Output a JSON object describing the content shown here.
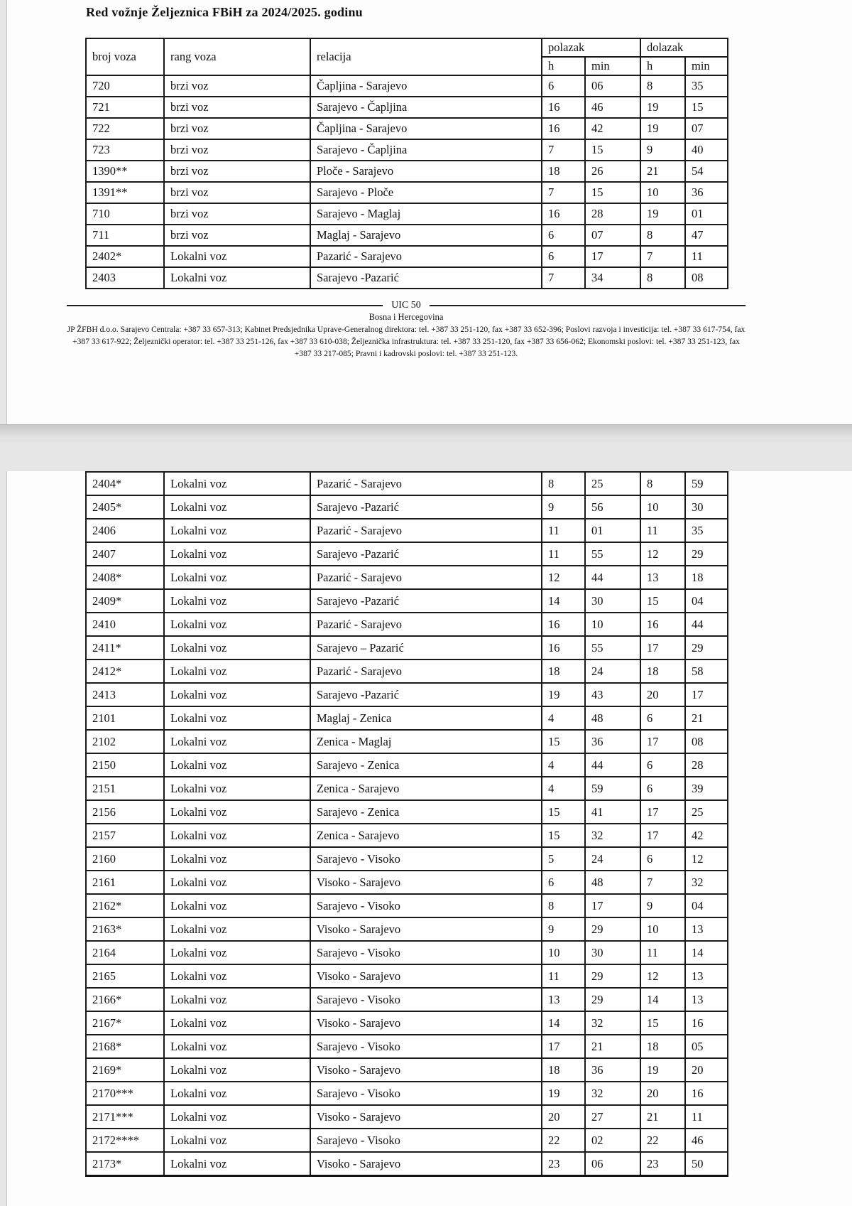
{
  "page1": {
    "title": "Red vožnje Željeznica FBiH za 2024/2025. godinu",
    "table": {
      "headers": {
        "broj": "broj voza",
        "rang": "rang voza",
        "relacija": "relacija",
        "polazak": "polazak",
        "dolazak": "dolazak",
        "h1": "h",
        "min1": "min",
        "h2": "h",
        "min2": "min"
      },
      "rows": [
        {
          "broj": "720",
          "rang": "brzi voz",
          "rel": "Čapljina - Sarajevo",
          "ph": "6",
          "pm": "06",
          "dh": "8",
          "dm": "35"
        },
        {
          "broj": "721",
          "rang": "brzi voz",
          "rel": "Sarajevo - Čapljina",
          "ph": "16",
          "pm": "46",
          "dh": "19",
          "dm": "15"
        },
        {
          "broj": "722",
          "rang": "brzi voz",
          "rel": "Čapljina - Sarajevo",
          "ph": "16",
          "pm": "42",
          "dh": "19",
          "dm": "07"
        },
        {
          "broj": "723",
          "rang": "brzi voz",
          "rel": "Sarajevo - Čapljina",
          "ph": "7",
          "pm": "15",
          "dh": "9",
          "dm": "40"
        },
        {
          "broj": "1390**",
          "rang": "brzi voz",
          "rel": "Ploče - Sarajevo",
          "ph": "18",
          "pm": "26",
          "dh": "21",
          "dm": "54"
        },
        {
          "broj": "1391**",
          "rang": "brzi voz",
          "rel": "Sarajevo - Ploče",
          "ph": "7",
          "pm": "15",
          "dh": "10",
          "dm": "36"
        },
        {
          "broj": "710",
          "rang": "brzi voz",
          "rel": "Sarajevo - Maglaj",
          "ph": "16",
          "pm": "28",
          "dh": "19",
          "dm": "01"
        },
        {
          "broj": "711",
          "rang": "brzi voz",
          "rel": "Maglaj - Sarajevo",
          "ph": "6",
          "pm": "07",
          "dh": "8",
          "dm": "47"
        },
        {
          "broj": "2402*",
          "rang": "Lokalni voz",
          "rel": "Pazarić - Sarajevo",
          "ph": "6",
          "pm": "17",
          "dh": "7",
          "dm": "11"
        },
        {
          "broj": "2403",
          "rang": "Lokalni voz",
          "rel": "Sarajevo -Pazarić",
          "ph": "7",
          "pm": "34",
          "dh": "8",
          "dm": "08"
        }
      ]
    },
    "footer": {
      "uic": "UIC 50",
      "country": "Bosna i Hercegovina",
      "contact": "JP ŽFBH d.o.o. Sarajevo Centrala: +387 33 657-313;  Kabinet Predsjednika Uprave-Generalnog direktora: tel. +387 33 251-120, fax +387 33 652-396; Poslovi razvoja i investicija: tel. +387 33 617-754, fax +387 33 617-922; Željeznički operator: tel. +387 33 251-126, fax +387 33 610-038; Željeznička infrastruktura: tel. +387 33 251-120, fax +387 33 656-062; Ekonomski poslovi: tel. +387 33 251-123, fax +387 33 217-085; Pravni i kadrovski poslovi: tel. +387 33 251-123."
    }
  },
  "page2": {
    "table": {
      "rows": [
        {
          "broj": "2404*",
          "rang": "Lokalni voz",
          "rel": "Pazarić - Sarajevo",
          "ph": "8",
          "pm": "25",
          "dh": "8",
          "dm": "59"
        },
        {
          "broj": "2405*",
          "rang": "Lokalni voz",
          "rel": "Sarajevo -Pazarić",
          "ph": "9",
          "pm": "56",
          "dh": "10",
          "dm": "30"
        },
        {
          "broj": "2406",
          "rang": "Lokalni voz",
          "rel": "Pazarić - Sarajevo",
          "ph": "11",
          "pm": "01",
          "dh": "11",
          "dm": "35"
        },
        {
          "broj": "2407",
          "rang": "Lokalni voz",
          "rel": "Sarajevo -Pazarić",
          "ph": "11",
          "pm": "55",
          "dh": "12",
          "dm": "29"
        },
        {
          "broj": "2408*",
          "rang": "Lokalni voz",
          "rel": "Pazarić - Sarajevo",
          "ph": "12",
          "pm": "44",
          "dh": "13",
          "dm": "18"
        },
        {
          "broj": "2409*",
          "rang": "Lokalni voz",
          "rel": "Sarajevo -Pazarić",
          "ph": "14",
          "pm": "30",
          "dh": "15",
          "dm": "04"
        },
        {
          "broj": "2410",
          "rang": "Lokalni voz",
          "rel": "Pazarić - Sarajevo",
          "ph": "16",
          "pm": "10",
          "dh": "16",
          "dm": "44"
        },
        {
          "broj": "2411*",
          "rang": "Lokalni voz",
          "rel": "Sarajevo – Pazarić",
          "ph": "16",
          "pm": "55",
          "dh": "17",
          "dm": "29"
        },
        {
          "broj": "2412*",
          "rang": "Lokalni voz",
          "rel": "Pazarić - Sarajevo",
          "ph": "18",
          "pm": "24",
          "dh": "18",
          "dm": "58"
        },
        {
          "broj": "2413",
          "rang": "Lokalni voz",
          "rel": "Sarajevo -Pazarić",
          "ph": "19",
          "pm": "43",
          "dh": "20",
          "dm": "17"
        },
        {
          "broj": "2101",
          "rang": "Lokalni voz",
          "rel": "Maglaj - Zenica",
          "ph": "4",
          "pm": "48",
          "dh": "6",
          "dm": "21"
        },
        {
          "broj": "2102",
          "rang": "Lokalni voz",
          "rel": "Zenica - Maglaj",
          "ph": "15",
          "pm": "36",
          "dh": "17",
          "dm": "08"
        },
        {
          "broj": "2150",
          "rang": "Lokalni voz",
          "rel": "Sarajevo - Zenica",
          "ph": "4",
          "pm": "44",
          "dh": "6",
          "dm": "28"
        },
        {
          "broj": "2151",
          "rang": "Lokalni voz",
          "rel": "Zenica - Sarajevo",
          "ph": "4",
          "pm": "59",
          "dh": "6",
          "dm": "39"
        },
        {
          "broj": "2156",
          "rang": "Lokalni voz",
          "rel": "Sarajevo - Zenica",
          "ph": "15",
          "pm": "41",
          "dh": "17",
          "dm": "25"
        },
        {
          "broj": "2157",
          "rang": "Lokalni voz",
          "rel": "Zenica - Sarajevo",
          "ph": "15",
          "pm": "32",
          "dh": "17",
          "dm": "42"
        },
        {
          "broj": "2160",
          "rang": "Lokalni voz",
          "rel": "Sarajevo - Visoko",
          "ph": "5",
          "pm": "24",
          "dh": "6",
          "dm": "12"
        },
        {
          "broj": "2161",
          "rang": "Lokalni voz",
          "rel": "Visoko - Sarajevo",
          "ph": "6",
          "pm": "48",
          "dh": "7",
          "dm": "32"
        },
        {
          "broj": "2162*",
          "rang": "Lokalni voz",
          "rel": "Sarajevo - Visoko",
          "ph": "8",
          "pm": "17",
          "dh": "9",
          "dm": "04"
        },
        {
          "broj": "2163*",
          "rang": "Lokalni voz",
          "rel": "Visoko - Sarajevo",
          "ph": "9",
          "pm": "29",
          "dh": "10",
          "dm": "13"
        },
        {
          "broj": "2164",
          "rang": "Lokalni voz",
          "rel": "Sarajevo - Visoko",
          "ph": "10",
          "pm": "30",
          "dh": "11",
          "dm": "14"
        },
        {
          "broj": "2165",
          "rang": "Lokalni voz",
          "rel": "Visoko - Sarajevo",
          "ph": "11",
          "pm": "29",
          "dh": "12",
          "dm": "13"
        },
        {
          "broj": "2166*",
          "rang": "Lokalni voz",
          "rel": "Sarajevo - Visoko",
          "ph": "13",
          "pm": "29",
          "dh": "14",
          "dm": "13"
        },
        {
          "broj": "2167*",
          "rang": "Lokalni voz",
          "rel": "Visoko - Sarajevo",
          "ph": "14",
          "pm": "32",
          "dh": "15",
          "dm": "16"
        },
        {
          "broj": "2168*",
          "rang": "Lokalni voz",
          "rel": "Sarajevo - Visoko",
          "ph": "17",
          "pm": "21",
          "dh": "18",
          "dm": "05"
        },
        {
          "broj": "2169*",
          "rang": "Lokalni voz",
          "rel": "Visoko - Sarajevo",
          "ph": "18",
          "pm": "36",
          "dh": "19",
          "dm": "20"
        },
        {
          "broj": "2170***",
          "rang": "Lokalni voz",
          "rel": "Sarajevo - Visoko",
          "ph": "19",
          "pm": "32",
          "dh": "20",
          "dm": "16"
        },
        {
          "broj": "2171***",
          "rang": "Lokalni voz",
          "rel": "Visoko - Sarajevo",
          "ph": "20",
          "pm": "27",
          "dh": "21",
          "dm": "11"
        },
        {
          "broj": "2172****",
          "rang": "Lokalni voz",
          "rel": "Sarajevo - Visoko",
          "ph": "22",
          "pm": "02",
          "dh": "22",
          "dm": "46"
        },
        {
          "broj": "2173*",
          "rang": "Lokalni voz",
          "rel": "Visoko - Sarajevo",
          "ph": "23",
          "pm": "06",
          "dh": "23",
          "dm": "50"
        }
      ]
    }
  }
}
